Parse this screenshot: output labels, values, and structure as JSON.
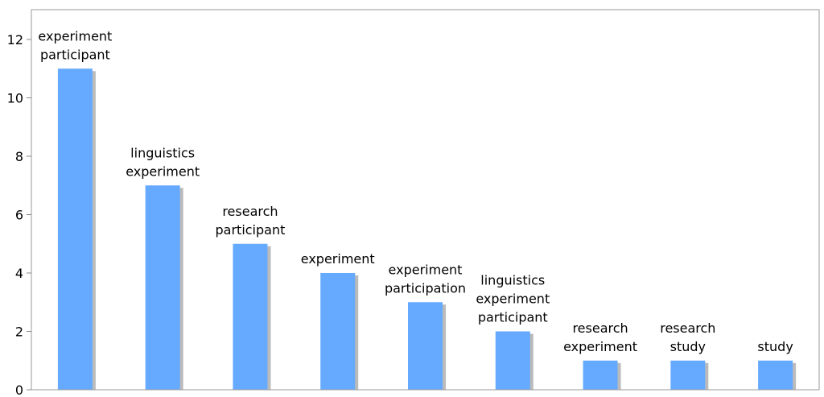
{
  "chart_data": {
    "type": "bar",
    "categories": [
      "experiment participant",
      "linguistics experiment",
      "research participant",
      "experiment",
      "experiment participation",
      "linguistics experiment participant",
      "research experiment",
      "research study",
      "study"
    ],
    "label_lines": [
      [
        "experiment",
        "participant"
      ],
      [
        "linguistics",
        "experiment"
      ],
      [
        "research",
        "participant"
      ],
      [
        "experiment"
      ],
      [
        "experiment",
        "participation"
      ],
      [
        "linguistics",
        "experiment",
        "participant"
      ],
      [
        "research",
        "experiment"
      ],
      [
        "research",
        "study"
      ],
      [
        "study"
      ]
    ],
    "values": [
      11,
      7,
      5,
      4,
      3,
      2,
      1,
      1,
      1
    ],
    "ylim": [
      0,
      12
    ],
    "yticks": [
      "0",
      "2",
      "4",
      "6",
      "8",
      "10",
      "12"
    ],
    "grid": false,
    "colors": {
      "bar": "#66aaff",
      "shadow": "#bbbbbb",
      "axis": "#888888",
      "frame": "#999999"
    }
  }
}
